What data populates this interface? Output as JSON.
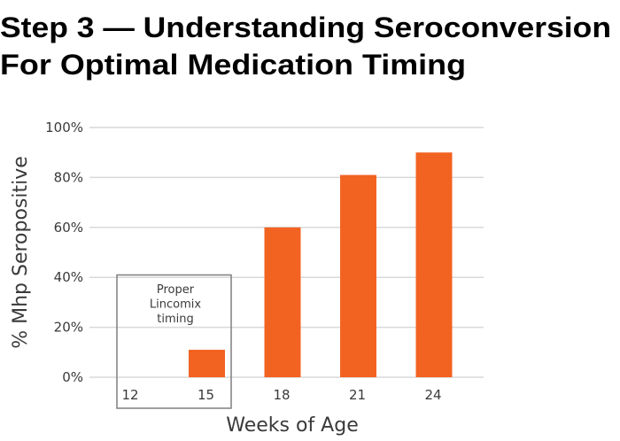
{
  "header": {
    "title_line1": "Step 3 — Understanding Seroconversion",
    "title_line2": "For Optimal Medication Timing"
  },
  "colors": {
    "accent": "#F26322",
    "grid": "#d9d9d9",
    "box": "#7f7f7f"
  },
  "chart_data": {
    "type": "bar",
    "categories": [
      "12",
      "15",
      "18",
      "21",
      "24"
    ],
    "values": [
      0,
      11,
      60,
      81,
      90
    ],
    "xlabel": "Weeks of Age",
    "ylabel": "% Mhp Seropositive",
    "ylim": [
      0,
      100
    ],
    "yticks": [
      "0%",
      "20%",
      "40%",
      "60%",
      "80%",
      "100%"
    ],
    "ytick_values": [
      0,
      20,
      40,
      60,
      80,
      100
    ],
    "grid": true,
    "annotation": {
      "lines": [
        "Proper",
        "Lincomix",
        "timing"
      ],
      "spans_categories": [
        "12",
        "15"
      ]
    }
  }
}
